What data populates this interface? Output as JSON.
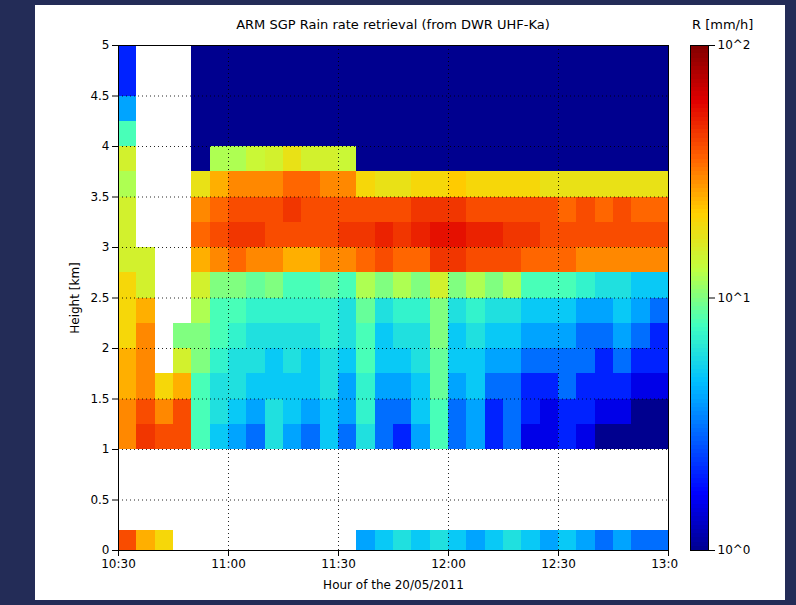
{
  "chart_data": {
    "type": "heatmap",
    "title": "ARM SGP Rain rate retrieval (from DWR UHF-Ka)",
    "xlabel": "Hour of the 20/05/2011",
    "ylabel": "Height [km]",
    "xlim": [
      "2011-05-20T10:30",
      "2011-05-20T13:00"
    ],
    "xticks": [
      {
        "value": "2011-05-20T10:30",
        "label": "10:30"
      },
      {
        "value": "2011-05-20T11:00",
        "label": "11:00"
      },
      {
        "value": "2011-05-20T11:30",
        "label": "11:30"
      },
      {
        "value": "2011-05-20T12:00",
        "label": "12:00"
      },
      {
        "value": "2011-05-20T12:30",
        "label": "12:30"
      },
      {
        "value": "2011-05-20T13:00",
        "label": "13:00"
      }
    ],
    "ylim": [
      0,
      5
    ],
    "yticks": [
      0,
      0.5,
      1,
      1.5,
      2,
      2.5,
      3,
      3.5,
      4,
      4.5,
      5
    ],
    "grid": true,
    "x_bins": [
      "2011-05-20T10:30",
      "2011-05-20T10:35",
      "2011-05-20T10:40",
      "2011-05-20T10:45",
      "2011-05-20T10:50",
      "2011-05-20T10:55",
      "2011-05-20T11:00",
      "2011-05-20T11:05",
      "2011-05-20T11:10",
      "2011-05-20T11:15",
      "2011-05-20T11:20",
      "2011-05-20T11:25",
      "2011-05-20T11:30",
      "2011-05-20T11:35",
      "2011-05-20T11:40",
      "2011-05-20T11:45",
      "2011-05-20T11:50",
      "2011-05-20T11:55",
      "2011-05-20T12:00",
      "2011-05-20T12:05",
      "2011-05-20T12:10",
      "2011-05-20T12:15",
      "2011-05-20T12:20",
      "2011-05-20T12:25",
      "2011-05-20T12:30",
      "2011-05-20T12:35",
      "2011-05-20T12:40",
      "2011-05-20T12:45",
      "2011-05-20T12:50",
      "2011-05-20T12:55",
      "2011-05-20T13:00"
    ],
    "y_bins": [
      0,
      0.2,
      1,
      1.25,
      1.5,
      1.75,
      2,
      2.25,
      2.5,
      2.75,
      3,
      3.25,
      3.5,
      3.75,
      4,
      4.25,
      4.5,
      4.75,
      5
    ],
    "cells": [
      [
        40,
        null,
        30,
        30,
        25,
        25,
        20,
        20,
        20,
        15,
        15,
        15,
        12,
        15,
        8,
        4,
        2,
        2
      ],
      [
        25,
        null,
        45,
        40,
        30,
        30,
        30,
        25,
        15,
        15,
        null,
        null,
        null,
        null,
        null,
        null,
        null,
        null
      ],
      [
        20,
        null,
        40,
        30,
        20,
        null,
        null,
        null,
        null,
        null,
        null,
        null,
        null,
        null,
        null,
        null,
        null,
        null
      ],
      [
        null,
        null,
        40,
        40,
        25,
        15,
        10,
        null,
        null,
        null,
        null,
        null,
        null,
        null,
        null,
        null,
        null,
        null
      ],
      [
        null,
        null,
        8,
        8,
        8,
        10,
        10,
        12,
        15,
        25,
        35,
        30,
        18,
        1,
        1,
        1,
        1,
        1
      ],
      [
        null,
        null,
        5,
        6,
        6,
        7,
        8,
        8,
        10,
        30,
        40,
        35,
        25,
        12,
        1,
        1,
        1,
        1
      ],
      [
        null,
        null,
        4,
        5,
        6,
        6,
        7,
        8,
        10,
        35,
        45,
        40,
        30,
        12,
        1,
        1,
        1,
        1
      ],
      [
        null,
        null,
        3,
        4,
        5,
        6,
        6,
        7,
        9,
        30,
        45,
        40,
        30,
        14,
        1,
        1,
        1,
        1
      ],
      [
        null,
        null,
        6,
        6,
        5,
        5,
        6,
        7,
        10,
        30,
        40,
        40,
        30,
        15,
        1,
        1,
        1,
        1
      ],
      [
        null,
        null,
        4,
        5,
        5,
        6,
        6,
        7,
        8,
        25,
        40,
        45,
        35,
        18,
        1,
        1,
        1,
        1
      ],
      [
        null,
        null,
        3,
        4,
        5,
        5,
        6,
        7,
        8,
        25,
        40,
        40,
        35,
        15,
        1,
        1,
        1,
        1
      ],
      [
        null,
        null,
        5,
        5,
        6,
        6,
        7,
        7,
        9,
        30,
        40,
        40,
        30,
        15,
        1,
        1,
        1,
        1
      ],
      [
        null,
        null,
        3,
        4,
        4,
        5,
        6,
        6,
        8,
        30,
        45,
        40,
        30,
        14,
        1,
        1,
        1,
        1
      ],
      [
        4,
        null,
        6,
        7,
        7,
        8,
        8,
        9,
        12,
        35,
        45,
        40,
        20,
        1,
        1,
        1,
        1,
        1
      ],
      [
        5,
        null,
        3,
        3,
        4,
        5,
        5,
        6,
        10,
        40,
        50,
        40,
        18,
        1,
        1,
        1,
        1,
        1
      ],
      [
        6,
        null,
        2,
        3,
        4,
        5,
        6,
        7,
        12,
        35,
        45,
        40,
        18,
        1,
        1,
        1,
        1,
        1
      ],
      [
        5,
        null,
        4,
        5,
        5,
        6,
        6,
        7,
        10,
        35,
        50,
        45,
        20,
        1,
        1,
        1,
        1,
        1
      ],
      [
        6,
        null,
        8,
        8,
        9,
        9,
        10,
        10,
        15,
        45,
        55,
        45,
        20,
        1,
        1,
        1,
        1,
        1
      ],
      [
        5,
        null,
        3,
        3,
        4,
        5,
        5,
        6,
        10,
        45,
        55,
        45,
        22,
        1,
        1,
        1,
        1,
        1
      ],
      [
        4,
        null,
        4,
        4,
        5,
        5,
        6,
        7,
        12,
        40,
        50,
        40,
        20,
        1,
        1,
        1,
        1,
        1
      ],
      [
        5,
        null,
        2,
        2,
        3,
        4,
        5,
        6,
        10,
        40,
        50,
        40,
        20,
        1,
        1,
        1,
        1,
        1
      ],
      [
        6,
        null,
        3,
        3,
        3,
        4,
        5,
        6,
        12,
        40,
        45,
        40,
        20,
        1,
        1,
        1,
        1,
        1
      ],
      [
        5,
        null,
        1.5,
        2,
        2,
        3,
        4,
        5,
        8,
        35,
        45,
        40,
        20,
        1,
        1,
        1,
        1,
        1
      ],
      [
        4,
        null,
        1.5,
        1.5,
        2,
        3,
        4,
        5,
        8,
        35,
        40,
        40,
        18,
        1,
        1,
        1,
        1,
        1
      ],
      [
        5,
        null,
        2,
        2,
        3,
        3,
        4,
        5,
        8,
        35,
        40,
        35,
        18,
        1,
        1,
        1,
        1,
        1
      ],
      [
        4,
        null,
        1.5,
        2,
        2,
        3,
        3,
        4,
        7,
        30,
        40,
        40,
        18,
        1,
        1,
        1,
        1,
        1
      ],
      [
        3,
        null,
        1,
        1.5,
        2,
        2,
        3,
        4,
        6,
        30,
        40,
        35,
        18,
        1,
        1,
        1,
        1,
        1
      ],
      [
        4,
        null,
        1,
        1.5,
        2,
        3,
        4,
        5,
        6,
        30,
        40,
        40,
        18,
        1,
        1,
        1,
        1,
        1
      ],
      [
        3,
        null,
        1,
        1,
        1.5,
        2,
        3,
        4,
        5,
        30,
        40,
        35,
        18,
        1,
        1,
        1,
        1,
        1
      ],
      [
        3,
        null,
        1,
        1,
        1.5,
        2,
        2,
        3,
        5,
        30,
        40,
        35,
        18,
        1,
        1,
        1,
        1,
        1
      ]
    ],
    "colorbar": {
      "label": "R [mm/h]",
      "log": true,
      "range": [
        1,
        100
      ],
      "ticks": [
        {
          "value": 1,
          "label": "10^0"
        },
        {
          "value": 10,
          "label": "10^1"
        },
        {
          "value": 100,
          "label": "10^2"
        }
      ]
    }
  }
}
